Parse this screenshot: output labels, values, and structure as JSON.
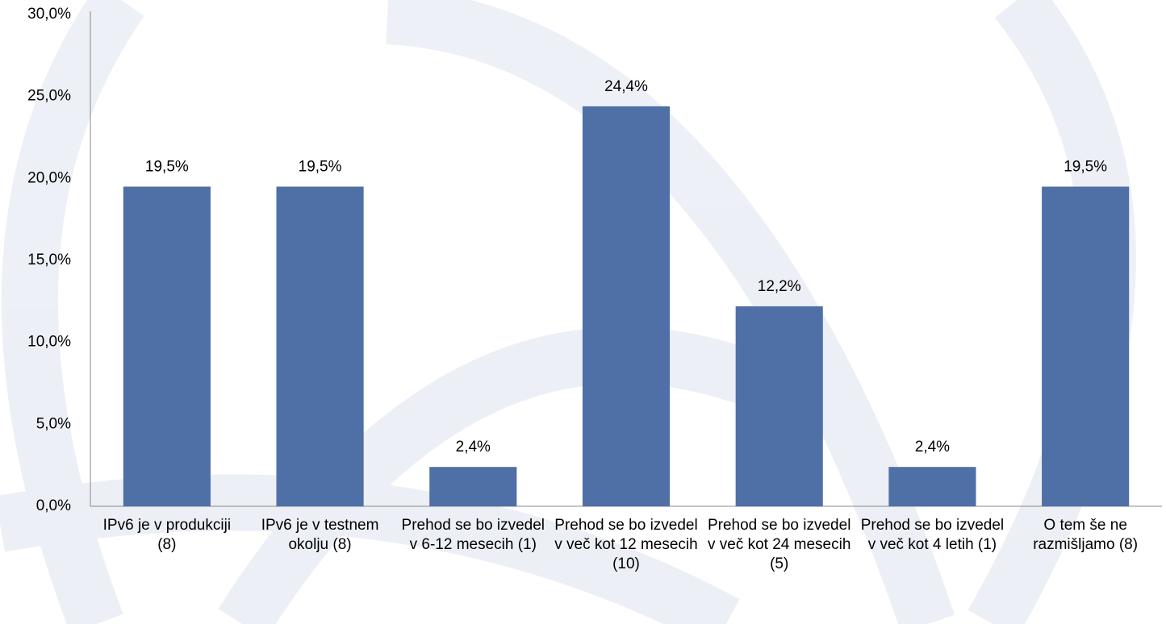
{
  "chart_data": {
    "type": "bar",
    "categories": [
      "IPv6 je v produkciji (8)",
      "IPv6 je v testnem okolju (8)",
      "Prehod se bo izvedel v 6-12 mesecih (1)",
      "Prehod se bo izvedel v več kot 12 mesecih (10)",
      "Prehod se bo izvedel v več kot 24 mesecih (5)",
      "Prehod se bo izvedel v več kot 4 letih (1)",
      "O tem še ne razmišljamo (8)"
    ],
    "values": [
      19.5,
      19.5,
      2.4,
      24.4,
      12.2,
      2.4,
      19.5
    ],
    "value_labels": [
      "19,5%",
      "19,5%",
      "2,4%",
      "24,4%",
      "12,2%",
      "2,4%",
      "19,5%"
    ],
    "color": "#4f6fa7",
    "ylim": [
      0,
      30
    ],
    "yticks": [
      {
        "value": 0,
        "label": "0,0%"
      },
      {
        "value": 5,
        "label": "5,0%"
      },
      {
        "value": 10,
        "label": "10,0%"
      },
      {
        "value": 15,
        "label": "15,0%"
      },
      {
        "value": 20,
        "label": "20,0%"
      },
      {
        "value": 25,
        "label": "25,0%"
      },
      {
        "value": 30,
        "label": "30,0%"
      }
    ],
    "grid": false
  }
}
